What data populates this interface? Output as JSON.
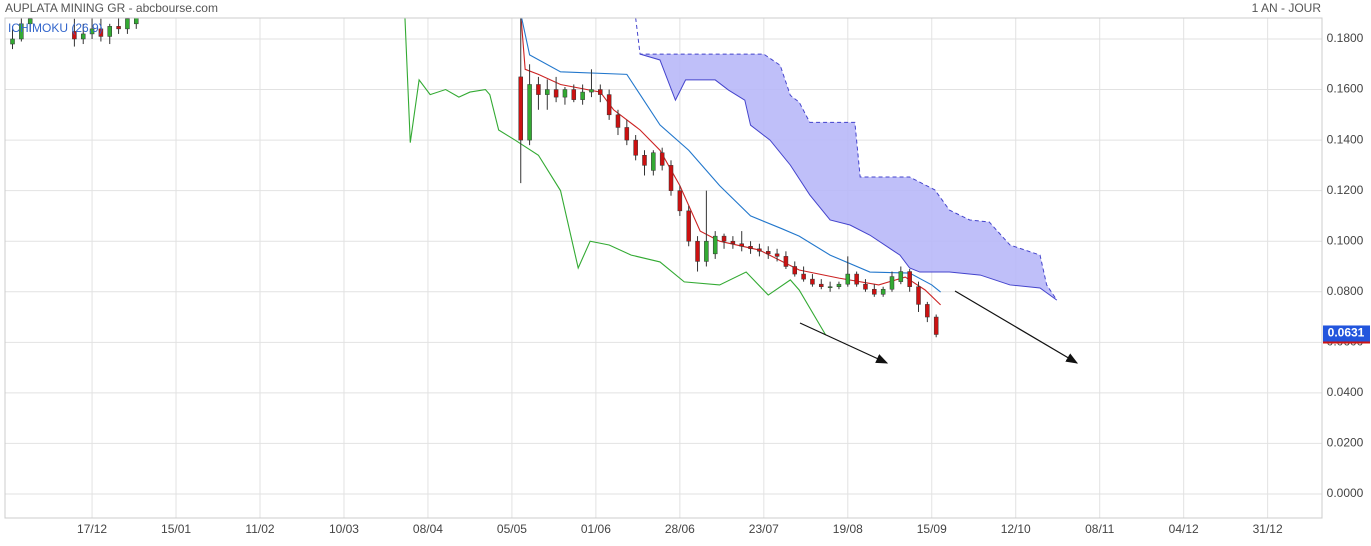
{
  "chart_data": {
    "type": "candlestick",
    "title": "AUPLATA MINING GR - abcbourse.com",
    "subtitle": "1 AN - JOUR",
    "indicator_label": "ICHIMOKU (26,9)",
    "grid": true,
    "xlim": [
      -19.7,
      278.3
    ],
    "ylim": [
      -0.0095,
      0.1883
    ],
    "xticks": [
      {
        "value": 0,
        "label": "17/12"
      },
      {
        "value": 19,
        "label": "15/01"
      },
      {
        "value": 38,
        "label": "11/02"
      },
      {
        "value": 57,
        "label": "10/03"
      },
      {
        "value": 76,
        "label": "08/04"
      },
      {
        "value": 95,
        "label": "05/05"
      },
      {
        "value": 114,
        "label": "01/06"
      },
      {
        "value": 133,
        "label": "28/06"
      },
      {
        "value": 152,
        "label": "23/07"
      },
      {
        "value": 171,
        "label": "19/08"
      },
      {
        "value": 190,
        "label": "15/09"
      },
      {
        "value": 209,
        "label": "12/10"
      },
      {
        "value": 228,
        "label": "08/11"
      },
      {
        "value": 247,
        "label": "04/12"
      },
      {
        "value": 266,
        "label": "31/12"
      }
    ],
    "yticks": [
      {
        "value": 0,
        "label": "0.0000"
      },
      {
        "value": 0.02,
        "label": "0.0200"
      },
      {
        "value": 0.04,
        "label": "0.0400"
      },
      {
        "value": 0.06,
        "label": "0.0600"
      },
      {
        "value": 0.08,
        "label": "0.0800"
      },
      {
        "value": 0.1,
        "label": "0.1000"
      },
      {
        "value": 0.12,
        "label": "0.1200"
      },
      {
        "value": 0.14,
        "label": "0.1400"
      },
      {
        "value": 0.16,
        "label": "0.1600"
      },
      {
        "value": 0.18,
        "label": "0.1800"
      }
    ],
    "up_color": "#33aa33",
    "down_color": "#cc1111",
    "candles": {
      "x": [
        -18,
        -16,
        -14,
        -4,
        -2,
        0,
        2,
        4,
        6,
        8,
        10,
        97,
        99,
        101,
        103,
        105,
        107,
        109,
        111,
        113,
        115,
        117,
        119,
        121,
        123,
        125,
        127,
        129,
        131,
        133,
        135,
        137,
        139,
        141,
        143,
        145,
        147,
        149,
        151,
        153,
        155,
        157,
        159,
        161,
        163,
        165,
        167,
        169,
        171,
        173,
        175,
        177,
        179,
        181,
        183,
        185,
        187,
        189,
        191
      ],
      "open": [
        0.178,
        0.18,
        0.186,
        0.183,
        0.18,
        0.182,
        0.184,
        0.181,
        0.185,
        0.184,
        0.186,
        0.165,
        0.14,
        0.162,
        0.158,
        0.16,
        0.157,
        0.16,
        0.156,
        0.159,
        0.16,
        0.158,
        0.15,
        0.145,
        0.14,
        0.134,
        0.128,
        0.135,
        0.13,
        0.12,
        0.112,
        0.1,
        0.092,
        0.095,
        0.102,
        0.1,
        0.099,
        0.098,
        0.097,
        0.096,
        0.095,
        0.094,
        0.09,
        0.087,
        0.085,
        0.083,
        0.082,
        0.082,
        0.083,
        0.087,
        0.083,
        0.081,
        0.079,
        0.081,
        0.084,
        0.088,
        0.082,
        0.075,
        0.07
      ],
      "high": [
        0.185,
        0.19,
        0.19,
        0.188,
        0.186,
        0.19,
        0.188,
        0.186,
        0.19,
        0.19,
        0.19,
        0.19,
        0.17,
        0.165,
        0.164,
        0.165,
        0.161,
        0.162,
        0.162,
        0.168,
        0.162,
        0.16,
        0.152,
        0.148,
        0.142,
        0.136,
        0.136,
        0.137,
        0.132,
        0.122,
        0.114,
        0.102,
        0.12,
        0.104,
        0.103,
        0.102,
        0.104,
        0.1,
        0.099,
        0.098,
        0.097,
        0.096,
        0.092,
        0.09,
        0.087,
        0.085,
        0.084,
        0.084,
        0.094,
        0.088,
        0.085,
        0.083,
        0.082,
        0.088,
        0.09,
        0.089,
        0.084,
        0.076,
        0.071
      ],
      "low": [
        0.176,
        0.179,
        0.183,
        0.177,
        0.178,
        0.18,
        0.179,
        0.178,
        0.182,
        0.182,
        0.184,
        0.123,
        0.138,
        0.152,
        0.152,
        0.155,
        0.154,
        0.155,
        0.154,
        0.157,
        0.155,
        0.148,
        0.142,
        0.138,
        0.132,
        0.126,
        0.126,
        0.128,
        0.118,
        0.11,
        0.098,
        0.088,
        0.09,
        0.093,
        0.097,
        0.097,
        0.096,
        0.095,
        0.094,
        0.093,
        0.092,
        0.089,
        0.086,
        0.084,
        0.082,
        0.081,
        0.08,
        0.081,
        0.082,
        0.082,
        0.08,
        0.078,
        0.078,
        0.08,
        0.083,
        0.08,
        0.072,
        0.068,
        0.062
      ],
      "close": [
        0.18,
        0.186,
        0.188,
        0.18,
        0.182,
        0.184,
        0.181,
        0.185,
        0.184,
        0.188,
        0.189,
        0.14,
        0.162,
        0.158,
        0.16,
        0.157,
        0.16,
        0.156,
        0.159,
        0.16,
        0.158,
        0.15,
        0.145,
        0.14,
        0.134,
        0.13,
        0.135,
        0.13,
        0.12,
        0.112,
        0.1,
        0.092,
        0.1,
        0.102,
        0.1,
        0.099,
        0.098,
        0.097,
        0.096,
        0.095,
        0.094,
        0.09,
        0.087,
        0.085,
        0.083,
        0.082,
        0.082,
        0.083,
        0.087,
        0.083,
        0.081,
        0.079,
        0.081,
        0.086,
        0.088,
        0.082,
        0.075,
        0.07,
        0.0631
      ]
    },
    "series": [
      {
        "color": "#cc2222",
        "x": [
          97,
          98,
          101,
          106,
          115,
          118,
          124,
          128.5,
          133,
          137.6,
          142,
          151,
          160,
          169,
          178,
          184,
          188.5,
          192
        ],
        "values": [
          0.19,
          0.168,
          0.166,
          0.162,
          0.159,
          0.152,
          0.144,
          0.136,
          0.122,
          0.104,
          0.1,
          0.0965,
          0.0886,
          0.0854,
          0.0827,
          0.0858,
          0.0807,
          0.0748
        ]
      },
      {
        "color": "#2277cc",
        "x": [
          97,
          99,
          106,
          121,
          124,
          128.5,
          135,
          142,
          149,
          156,
          160,
          167,
          176,
          185,
          190,
          192
        ],
        "values": [
          0.19,
          0.1737,
          0.167,
          0.166,
          0.158,
          0.146,
          0.136,
          0.122,
          0.11,
          0.105,
          0.102,
          0.0945,
          0.0878,
          0.0874,
          0.0827,
          0.0799
        ]
      },
      {
        "color": "#33aa33",
        "x": [
          70.8,
          72,
          74,
          76.5,
          80,
          83,
          85.5,
          89,
          90,
          92,
          95.7,
          101,
          106,
          110,
          112.7,
          117,
          122,
          128.5,
          134,
          142,
          148,
          153,
          158,
          160,
          166
        ],
        "values": [
          0.1883,
          0.139,
          0.1638,
          0.158,
          0.16,
          0.157,
          0.159,
          0.16,
          0.158,
          0.144,
          0.14,
          0.134,
          0.12,
          0.0894,
          0.1,
          0.0985,
          0.0945,
          0.0918,
          0.0839,
          0.0827,
          0.0878,
          0.0787,
          0.0847,
          0.0807,
          0.0629
        ]
      }
    ],
    "cloud": {
      "color": "#b8b8f8",
      "edge_color": "#4444cc",
      "x_a": [
        124,
        128.5,
        132,
        134.3,
        141,
        144,
        147.7,
        149,
        153.4,
        158,
        162.4,
        167,
        171.5,
        176,
        182.8,
        185,
        187.3,
        194,
        201,
        207.7,
        214.5,
        218.3
      ],
      "span_a": [
        0.174,
        0.1717,
        0.1558,
        0.1638,
        0.1638,
        0.1598,
        0.1558,
        0.1459,
        0.14,
        0.1301,
        0.1183,
        0.1084,
        0.1064,
        0.1024,
        0.0945,
        0.0894,
        0.0878,
        0.0878,
        0.0866,
        0.0827,
        0.0815,
        0.0767
      ],
      "x_b": [
        123,
        124,
        152,
        155.7,
        158,
        160,
        162.4,
        172.6,
        173.8,
        185,
        190.7,
        194,
        198.6,
        203,
        207.7,
        214.5,
        216,
        218.3
      ],
      "span_b": [
        0.1883,
        0.174,
        0.174,
        0.1696,
        0.1577,
        0.155,
        0.147,
        0.147,
        0.1254,
        0.1254,
        0.1203,
        0.1123,
        0.1084,
        0.1076,
        0.0985,
        0.0945,
        0.0827,
        0.0767
      ]
    },
    "last_price": 0.0631,
    "last_price_color": "#2255dd"
  }
}
